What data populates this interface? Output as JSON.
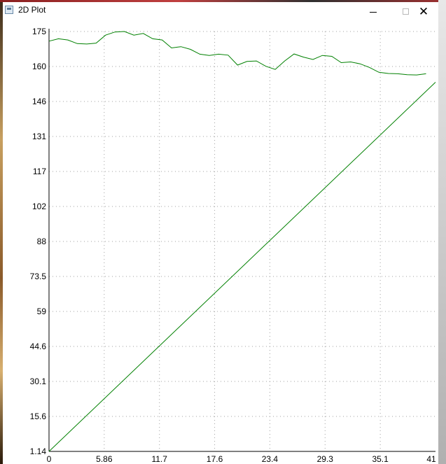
{
  "window": {
    "title": "2D Plot",
    "minimize_icon": "minimize-icon",
    "maximize_icon": "maximize-icon",
    "close_icon": "close-icon",
    "close_glyph": "✕"
  },
  "chart_data": {
    "type": "line",
    "title": "",
    "xlabel": "",
    "ylabel": "",
    "xlim": [
      0,
      41
    ],
    "ylim": [
      1.14,
      175
    ],
    "grid": true,
    "x_ticks": [
      "0",
      "5.86",
      "11.7",
      "17.6",
      "23.4",
      "29.3",
      "35.1",
      "41"
    ],
    "y_ticks": [
      "1.14",
      "15.6",
      "30.1",
      "44.6",
      "59",
      "73.5",
      "88",
      "102",
      "117",
      "131",
      "146",
      "160",
      "175"
    ],
    "line_color": "#008000",
    "series": [
      {
        "x": [
          0,
          1,
          2,
          3,
          4,
          5,
          6,
          7,
          8,
          9,
          10,
          11,
          12,
          13,
          14,
          15,
          16,
          17,
          18,
          19,
          20,
          21,
          22,
          23,
          24,
          25,
          26,
          27,
          28,
          29,
          30,
          31,
          32,
          33,
          34,
          35,
          36,
          37,
          38,
          39,
          40
        ],
        "values": [
          171,
          172,
          171.5,
          170,
          169.8,
          170.2,
          173.5,
          174.8,
          175,
          173.5,
          174.2,
          172,
          171.5,
          168.2,
          168.7,
          167.6,
          165.6,
          165.1,
          165.6,
          165.2,
          161.1,
          162.6,
          162.8,
          160.6,
          159.3,
          162.8,
          165.7,
          164.4,
          163.4,
          165.1,
          164.7,
          162.1,
          162.4,
          161.6,
          160.1,
          158.1,
          157.6,
          157.5,
          157.1,
          157.0,
          157.5
        ]
      },
      {
        "x": [
          0,
          41
        ],
        "values": [
          1.14,
          154
        ]
      }
    ]
  }
}
